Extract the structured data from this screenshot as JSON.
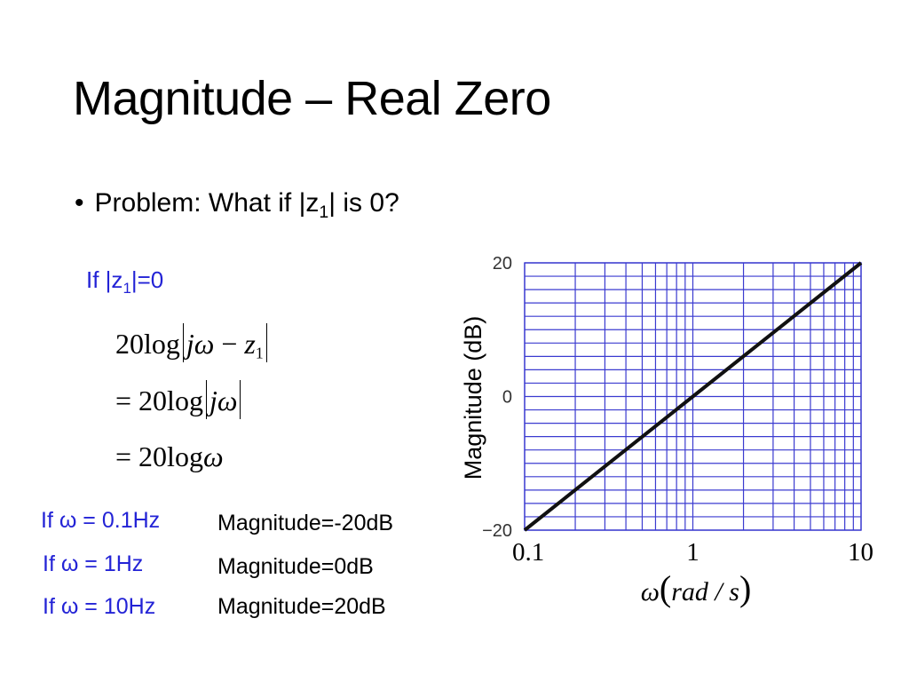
{
  "slide": {
    "title": "Magnitude – Real Zero",
    "bullet": {
      "prefix": "Problem: What if |z",
      "sub": "1",
      "suffix": "| is 0?"
    },
    "condition": {
      "prefix": "If |z",
      "sub": "1",
      "suffix": "|=0"
    },
    "equations": {
      "line1": {
        "pre": "20log",
        "j": "j",
        "omega": "ω",
        "minus": " − ",
        "z": "z",
        "zsub": "1"
      },
      "line2": {
        "pre": "= 20log",
        "j": "j",
        "omega": "ω"
      },
      "line3": {
        "pre": "= 20log",
        "omega": "ω"
      }
    },
    "examples": [
      {
        "condition": "If ω = 0.1Hz",
        "result": "Magnitude=-20dB"
      },
      {
        "condition": "If ω = 1Hz",
        "result": "Magnitude=0dB"
      },
      {
        "condition": "If ω = 10Hz",
        "result": "Magnitude=20dB"
      }
    ]
  },
  "colors": {
    "accent_blue": "#2323d6",
    "grid": "#3b3bd0",
    "line": "#111111"
  },
  "chart_data": {
    "type": "line",
    "x_scale": "log",
    "xlim": [
      0.1,
      10
    ],
    "ylim": [
      -20,
      20
    ],
    "y_ticks": [
      -20,
      0,
      20
    ],
    "y_tick_labels": [
      "−20",
      "0",
      "20"
    ],
    "x_ticks": [
      0.1,
      1,
      10
    ],
    "x_tick_labels": [
      "0.1",
      "1",
      "10"
    ],
    "ylabel": "Magnitude (dB)",
    "xlabel": {
      "omega": "ω",
      "unit": "rad / s"
    },
    "grid": true,
    "series": [
      {
        "x": [
          0.1,
          1,
          10
        ],
        "y": [
          -20,
          0,
          20
        ]
      }
    ]
  }
}
